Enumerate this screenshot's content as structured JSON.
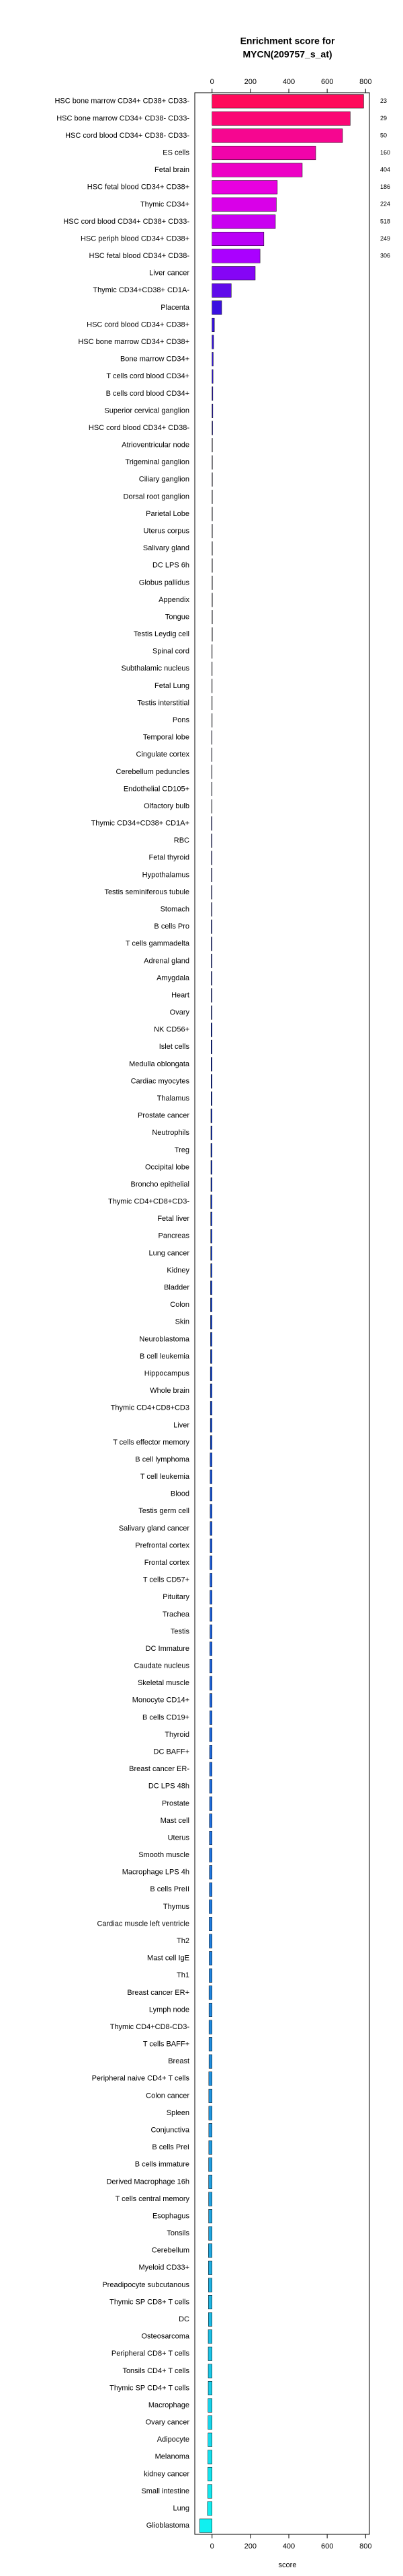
{
  "chart_data": {
    "type": "barh",
    "title": [
      "Enrichment score for",
      "MYCN(209757_s_at)"
    ],
    "xlabel": "score",
    "categories": [
      "HSC bone marrow CD34+ CD38+ CD33-",
      "HSC bone marrow CD34+ CD38- CD33-",
      "HSC cord blood CD34+ CD38- CD33-",
      "ES cells",
      "Fetal brain",
      "HSC fetal blood CD34+ CD38+",
      "Thymic CD34+",
      "HSC cord blood CD34+ CD38+ CD33-",
      "HSC periph blood CD34+ CD38+",
      "HSC fetal blood CD34+ CD38-",
      "Liver cancer",
      "Thymic CD34+CD38+ CD1A-",
      "Placenta",
      "HSC cord blood CD34+ CD38+",
      "HSC bone marrow CD34+ CD38+",
      "Bone marrow CD34+",
      "T cells cord blood CD34+",
      "B cells cord blood CD34+",
      "Superior cervical ganglion",
      "HSC cord blood CD34+ CD38-",
      "Atrioventricular node",
      "Trigeminal ganglion",
      "Ciliary ganglion",
      "Dorsal root ganglion",
      "Parietal Lobe",
      "Uterus corpus",
      "Salivary gland",
      "DC LPS 6h",
      "Globus pallidus",
      "Appendix",
      "Tongue",
      "Testis Leydig cell",
      "Spinal cord",
      "Subthalamic nucleus",
      "Fetal Lung",
      "Testis interstitial",
      "Pons",
      "Temporal lobe",
      "Cingulate cortex",
      "Cerebellum peduncles",
      "Endothelial CD105+",
      "Olfactory bulb",
      "Thymic CD34+CD38+ CD1A+",
      "RBC",
      "Fetal thyroid",
      "Hypothalamus",
      "Testis seminiferous tubule",
      "Stomach",
      "B cells Pro",
      "T cells gammadelta",
      "Adrenal gland",
      "Amygdala",
      "Heart",
      "Ovary",
      "NK CD56+",
      "Islet cells",
      "Medulla oblongata",
      "Cardiac myocytes",
      "Thalamus",
      "Prostate cancer",
      "Neutrophils",
      "Treg",
      "Occipital lobe",
      "Broncho epithelial",
      "Thymic CD4+CD8+CD3-",
      "Fetal liver",
      "Pancreas",
      "Lung cancer",
      "Kidney",
      "Bladder",
      "Colon",
      "Skin",
      "Neuroblastoma",
      "B cell leukemia",
      "Hippocampus",
      "Whole brain",
      "Thymic CD4+CD8+CD3",
      "Liver",
      "T cells effector memory",
      "B cell lymphoma",
      "T cell leukemia",
      "Blood",
      "Testis germ cell",
      "Salivary gland cancer",
      "Prefrontal cortex",
      "Frontal cortex",
      "T cells CD57+",
      "Pituitary",
      "Trachea",
      "Testis",
      "DC Immature",
      "Caudate nucleus",
      "Skeletal muscle",
      "Monocyte CD14+",
      "B cells CD19+",
      "Thyroid",
      "DC BAFF+",
      "Breast cancer ER-",
      "DC LPS 48h",
      "Prostate",
      "Mast cell",
      "Uterus",
      "Smooth muscle",
      "Macrophage LPS 4h",
      "B cells PreII",
      "Thymus",
      "Cardiac muscle left ventricle",
      "Th2",
      "Mast cell IgE",
      "Th1",
      "Breast cancer ER+",
      "Lymph node",
      "Thymic CD4+CD8-CD3-",
      "T cells BAFF+",
      "Breast",
      "Peripheral naive CD4+ T cells",
      "Colon cancer",
      "Spleen",
      "Conjunctiva",
      "B cells PreI",
      "B cells immature",
      "Derived Macrophage 16h",
      "T cells central memory",
      "Esophagus",
      "Tonsils",
      "Cerebellum",
      "Myeloid CD33+",
      "Preadipocyte subcutanous",
      "Thymic SP CD8+ T cells",
      "DC",
      "Osteosarcoma",
      "Peripheral CD8+ T cells",
      "Tonsils CD4+ T cells",
      "Thymic SP CD4+ T cells",
      "Macrophage",
      "Ovary cancer",
      "Adipocyte",
      "Melanoma",
      "kidney cancer",
      "Small intestine",
      "Lung",
      "Glioblastoma"
    ],
    "values": [
      790,
      720,
      680,
      540,
      470,
      340,
      335,
      330,
      270,
      250,
      225,
      100,
      50,
      12,
      8,
      6,
      5,
      4,
      4,
      3,
      2,
      2,
      2,
      1,
      1,
      1,
      1,
      0,
      0,
      0,
      0,
      0,
      -1,
      -1,
      -1,
      -1,
      -1,
      -2,
      -2,
      -2,
      -2,
      -2,
      -3,
      -3,
      -3,
      -3,
      -3,
      -3,
      -4,
      -4,
      -4,
      -4,
      -4,
      -4,
      -5,
      -5,
      -5,
      -5,
      -5,
      -6,
      -6,
      -6,
      -6,
      -6,
      -7,
      -7,
      -7,
      -7,
      -7,
      -8,
      -8,
      -8,
      -8,
      -8,
      -9,
      -9,
      -9,
      -9,
      -9,
      -10,
      -10,
      -10,
      -10,
      -10,
      -10,
      -11,
      -11,
      -11,
      -11,
      -11,
      -12,
      -12,
      -12,
      -12,
      -12,
      -13,
      -13,
      -13,
      -13,
      -13,
      -14,
      -14,
      -14,
      -14,
      -14,
      -15,
      -15,
      -15,
      -15,
      -15,
      -16,
      -16,
      -16,
      -16,
      -16,
      -17,
      -17,
      -17,
      -17,
      -17,
      -18,
      -18,
      -18,
      -18,
      -18,
      -19,
      -19,
      -19,
      -19,
      -19,
      -20,
      -20,
      -20,
      -20,
      -21,
      -21,
      -21,
      -22,
      -22,
      -23,
      -24,
      -65
    ],
    "annotations": [
      23,
      29,
      50,
      160,
      404,
      186,
      224,
      518,
      249,
      306
    ],
    "color_stops": [
      [
        0,
        "#ff0a5a"
      ],
      [
        5,
        "#e800e0"
      ],
      [
        9,
        "#aa00ff"
      ],
      [
        12,
        "#3a10e0"
      ],
      [
        20,
        "#1c10c8"
      ],
      [
        60,
        "#1c3fd0"
      ],
      [
        100,
        "#2070e0"
      ],
      [
        125,
        "#20a8e0"
      ],
      [
        141,
        "#10f0f0"
      ]
    ],
    "xlim": [
      -90,
      820
    ],
    "xticks": [
      0,
      200,
      400,
      600,
      800
    ]
  }
}
